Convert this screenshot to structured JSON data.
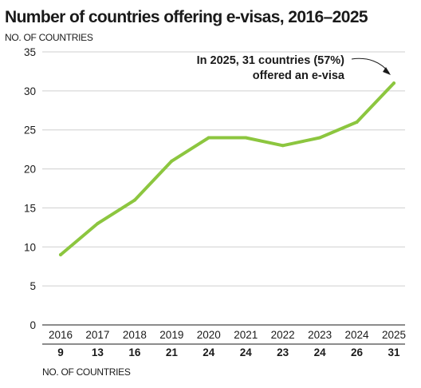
{
  "title": "Number of countries offering e-visas, 2016–2025",
  "ylabel": "NO. OF COUNTRIES",
  "table_label": "NO. OF COUNTRIES",
  "annotation": {
    "line1": "In 2025, 31 countries (57%)",
    "line2": "offered an e-visa"
  },
  "colors": {
    "line": "#8cc63f",
    "grid": "#cfcfcf",
    "text": "#1a1a1a"
  },
  "chart_data": {
    "type": "line",
    "title": "Number of countries offering e-visas, 2016–2025",
    "ylabel": "NO. OF COUNTRIES",
    "x": [
      "2016",
      "2017",
      "2018",
      "2019",
      "2020",
      "2021",
      "2022",
      "2023",
      "2024",
      "2025"
    ],
    "values": [
      9,
      13,
      16,
      21,
      24,
      24,
      23,
      24,
      26,
      31
    ],
    "ylim": [
      0,
      35
    ],
    "yticks": [
      0,
      5,
      10,
      15,
      20,
      25,
      30,
      35
    ],
    "value_row": [
      "9",
      "13",
      "16",
      "21",
      "24",
      "24",
      "23",
      "24",
      "26",
      "31"
    ],
    "grid": "horizontal",
    "legend": "none"
  }
}
